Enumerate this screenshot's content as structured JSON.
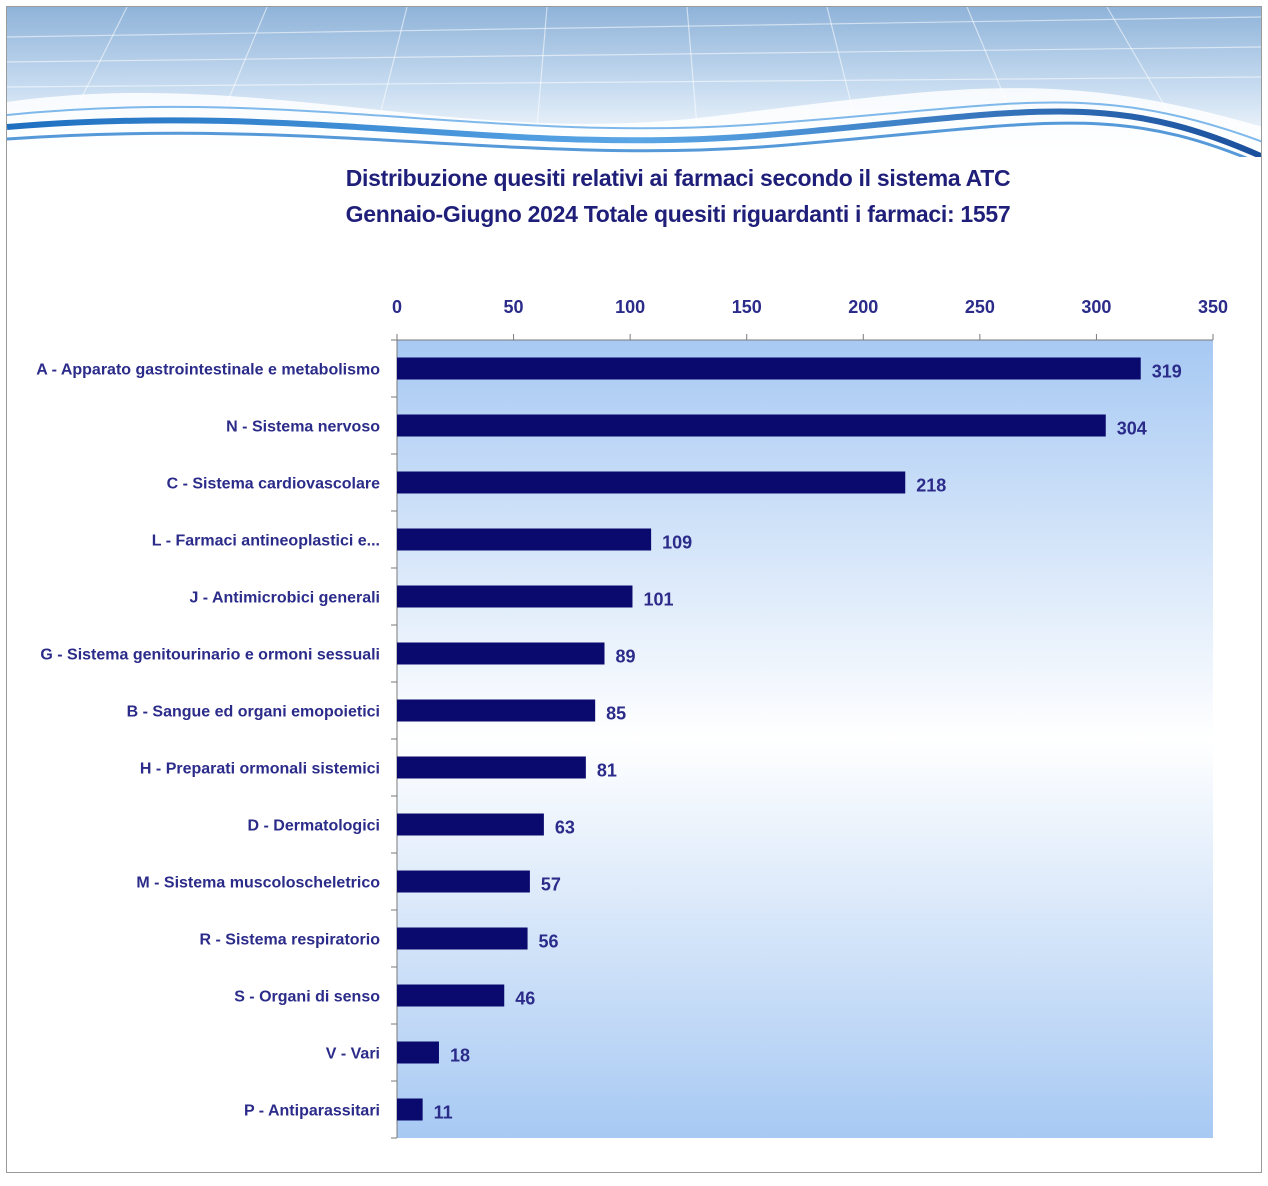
{
  "chart_data": {
    "type": "bar",
    "orientation": "horizontal",
    "title": "Distribuzione quesiti relativi ai farmaci secondo il sistema ATC",
    "subtitle": "Gennaio-Giugno 2024  Totale quesiti riguardanti i farmaci:  1557",
    "xlim": [
      0,
      350
    ],
    "ticks": [
      "0",
      "50",
      "100",
      "150",
      "200",
      "250",
      "300",
      "350"
    ],
    "tick_values": [
      0,
      50,
      100,
      150,
      200,
      250,
      300,
      350
    ],
    "axis_position": "top",
    "categories": [
      "A - Apparato gastrointestinale e metabolismo",
      "N - Sistema nervoso",
      "C - Sistema cardiovascolare",
      "L - Farmaci antineoplastici e...",
      "J - Antimicrobici generali",
      "G - Sistema genitourinario e ormoni sessuali",
      "B - Sangue ed organi emopoietici",
      "H - Preparati ormonali sistemici",
      "D - Dermatologici",
      "M - Sistema muscoloscheletrico",
      "R - Sistema respiratorio",
      "S - Organi di senso",
      "V - Vari",
      "P - Antiparassitari"
    ],
    "values": [
      319,
      304,
      218,
      109,
      101,
      89,
      85,
      81,
      63,
      57,
      56,
      46,
      18,
      11
    ],
    "bar_color": "#0a0a6e",
    "label_color": "#2b2b8a",
    "plot_background": [
      "#a7c9f3",
      "#ffffff",
      "#a7c9f3"
    ],
    "grid": false
  }
}
